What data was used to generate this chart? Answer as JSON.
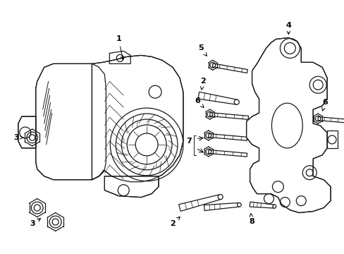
{
  "bg_color": "#ffffff",
  "line_color": "#1a1a1a",
  "lw": 0.9,
  "fig_w": 4.89,
  "fig_h": 3.6,
  "dpi": 100
}
